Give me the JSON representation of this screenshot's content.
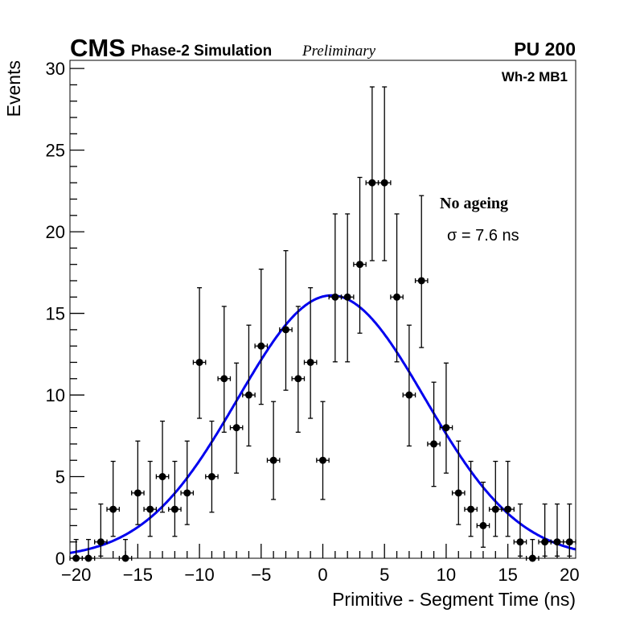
{
  "chart_data": {
    "type": "scatter",
    "title": "",
    "header": {
      "experiment": "CMS",
      "subtitle": "Phase-2 Simulation",
      "status": "Preliminary",
      "pileup": "PU 200"
    },
    "region_label": "Wh-2 MB1",
    "annotations": [
      "No ageing",
      "σ = 7.6 ns"
    ],
    "xlabel": "Primitive - Segment Time (ns)",
    "ylabel": "Events",
    "xlim": [
      -20.5,
      20.5
    ],
    "ylim": [
      0,
      30.5
    ],
    "xticks": [
      -20,
      -15,
      -10,
      -5,
      0,
      5,
      10,
      15,
      20
    ],
    "xtick_labels": [
      "−20",
      "−15",
      "−10",
      "−5",
      "0",
      "5",
      "10",
      "15",
      "20"
    ],
    "yticks": [
      0,
      5,
      10,
      15,
      20,
      25,
      30
    ],
    "ytick_labels": [
      "0",
      "5",
      "10",
      "15",
      "20",
      "25",
      "30"
    ],
    "grid": false,
    "series": [
      {
        "name": "data",
        "style": "points-poisson-errors",
        "color": "#000000",
        "x_error": 0.5,
        "x": [
          -20,
          -19,
          -18,
          -17,
          -16,
          -15,
          -14,
          -13,
          -12,
          -11,
          -10,
          -9,
          -8,
          -7,
          -6,
          -5,
          -4,
          -3,
          -2,
          -1,
          0,
          1,
          2,
          3,
          4,
          5,
          6,
          7,
          8,
          9,
          10,
          11,
          12,
          13,
          14,
          15,
          16,
          17,
          18,
          19,
          20
        ],
        "y": [
          0,
          0,
          1,
          3,
          0,
          4,
          3,
          5,
          3,
          4,
          12,
          5,
          11,
          8,
          10,
          13,
          6,
          14,
          11,
          12,
          6,
          16,
          16,
          18,
          23,
          23,
          16,
          10,
          17,
          7,
          8,
          4,
          3,
          2,
          3,
          3,
          1,
          0,
          1,
          1,
          1
        ]
      },
      {
        "name": "gaussian fit",
        "style": "line",
        "color": "#0000ee",
        "amplitude": 16.1,
        "mean": 0.7,
        "sigma": 7.6
      }
    ]
  }
}
